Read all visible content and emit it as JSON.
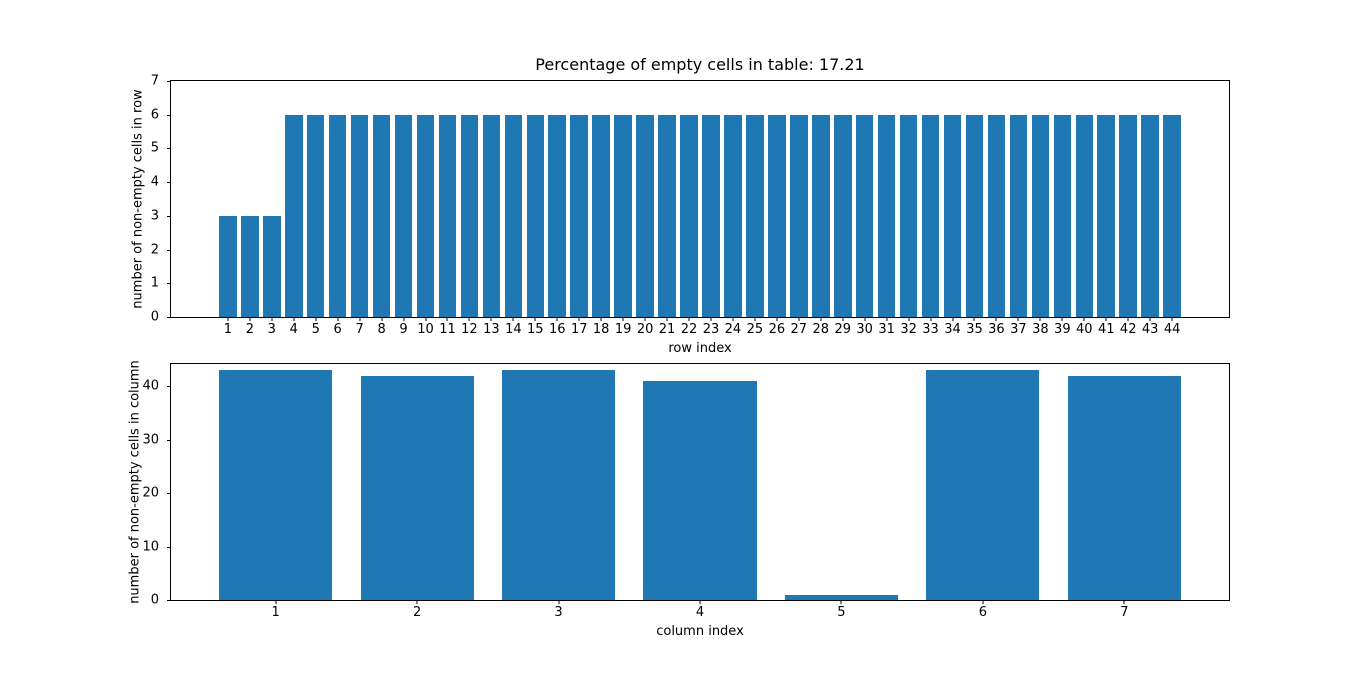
{
  "figure": {
    "background": "#ffffff",
    "spine_color": "#000000",
    "bar_color": "#1f77b4"
  },
  "chart_data": [
    {
      "type": "bar",
      "title": "Percentage of empty cells in table: 17.21",
      "xlabel": "row index",
      "ylabel": "number of non-empty cells in row",
      "categories": [
        1,
        2,
        3,
        4,
        5,
        6,
        7,
        8,
        9,
        10,
        11,
        12,
        13,
        14,
        15,
        16,
        17,
        18,
        19,
        20,
        21,
        22,
        23,
        24,
        25,
        26,
        27,
        28,
        29,
        30,
        31,
        32,
        33,
        34,
        35,
        36,
        37,
        38,
        39,
        40,
        41,
        42,
        43,
        44
      ],
      "values": [
        3,
        3,
        3,
        6,
        6,
        6,
        6,
        6,
        6,
        6,
        6,
        6,
        6,
        6,
        6,
        6,
        6,
        6,
        6,
        6,
        6,
        6,
        6,
        6,
        6,
        6,
        6,
        6,
        6,
        6,
        6,
        6,
        6,
        6,
        6,
        6,
        6,
        6,
        6,
        6,
        6,
        6,
        6,
        6
      ],
      "xlim": [
        -1.59,
        46.59
      ],
      "ylim": [
        0,
        7
      ],
      "yticks": [
        0,
        1,
        2,
        3,
        4,
        5,
        6,
        7
      ],
      "bar_width": 0.8,
      "bar_color": "#1f77b4",
      "grid": false,
      "legend": null
    },
    {
      "type": "bar",
      "title": "",
      "xlabel": "column index",
      "ylabel": "number of non-empty cells in column",
      "categories": [
        1,
        2,
        3,
        4,
        5,
        6,
        7
      ],
      "values": [
        43,
        42,
        43,
        41,
        1,
        43,
        42
      ],
      "xlim": [
        0.26,
        7.74
      ],
      "ylim": [
        0,
        44.2
      ],
      "yticks": [
        0,
        10,
        20,
        30,
        40
      ],
      "bar_width": 0.8,
      "bar_color": "#1f77b4",
      "grid": false,
      "legend": null
    }
  ]
}
